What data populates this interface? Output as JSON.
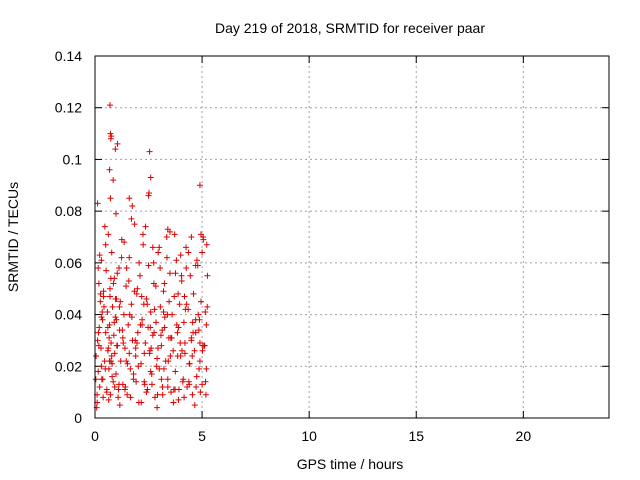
{
  "chart_data": {
    "type": "scatter",
    "title": "Day 219 of 2018, SRMTID for receiver paar",
    "xlabel": "GPS time / hours",
    "ylabel": "SRMTID / TECUs",
    "xlim": [
      0,
      24
    ],
    "ylim": [
      0,
      0.14
    ],
    "xticks": [
      0,
      5,
      10,
      15,
      20
    ],
    "xtick_labels": [
      "0",
      "5",
      "10",
      "15",
      "20"
    ],
    "yticks": [
      0,
      0.02,
      0.04,
      0.06,
      0.08,
      0.1,
      0.12,
      0.14
    ],
    "ytick_labels": [
      "0",
      "0.02",
      "0.04",
      "0.06",
      "0.08",
      "0.1",
      "0.12",
      "0.14"
    ],
    "grid": true,
    "marker": "+",
    "series": [
      {
        "name": "SRMTID",
        "color": "#e00000",
        "x": [
          0.05,
          0.1,
          0.12,
          0.15,
          0.18,
          0.2,
          0.22,
          0.25,
          0.28,
          0.3,
          0.32,
          0.35,
          0.38,
          0.4,
          0.45,
          0.5,
          0.52,
          0.55,
          0.58,
          0.6,
          0.62,
          0.65,
          0.68,
          0.7,
          0.72,
          0.75,
          0.78,
          0.8,
          0.82,
          0.85,
          0.88,
          0.9,
          0.92,
          0.95,
          0.98,
          1.0,
          1.05,
          1.1,
          1.12,
          1.15,
          1.2,
          1.25,
          1.3,
          1.35,
          1.4,
          1.45,
          1.5,
          1.55,
          1.6,
          1.65,
          1.7,
          1.75,
          1.8,
          1.85,
          1.9,
          1.95,
          2.0,
          2.05,
          2.1,
          2.15,
          2.2,
          2.25,
          2.3,
          2.35,
          2.4,
          2.45,
          2.5,
          2.55,
          2.6,
          2.65,
          2.7,
          2.75,
          2.8,
          2.85,
          2.9,
          2.95,
          3.0,
          3.05,
          3.1,
          3.15,
          3.2,
          3.25,
          3.3,
          3.35,
          3.4,
          3.45,
          3.5,
          3.55,
          3.6,
          3.65,
          3.7,
          3.75,
          3.8,
          3.85,
          3.9,
          3.95,
          4.0,
          4.05,
          4.1,
          4.15,
          4.2,
          4.25,
          4.3,
          4.35,
          4.4,
          4.45,
          4.5,
          4.55,
          4.6,
          4.65,
          4.7,
          4.75,
          4.8,
          4.85,
          4.9,
          4.95,
          5.0,
          5.05,
          5.1,
          5.15,
          5.2,
          5.25,
          0.08,
          0.15,
          0.3,
          0.42,
          0.55,
          0.66,
          0.7,
          0.75,
          0.8,
          0.9,
          1.02,
          1.08,
          1.18,
          1.28,
          1.42,
          1.6,
          1.72,
          1.88,
          2.02,
          2.18,
          2.32,
          2.48,
          2.62,
          2.78,
          2.92,
          3.08,
          3.22,
          3.38,
          3.52,
          3.68,
          3.82,
          3.98,
          4.12,
          4.28,
          4.42,
          4.58,
          4.72,
          4.88,
          5.02,
          5.18,
          0.04,
          0.18,
          0.34,
          0.48,
          0.6,
          0.78,
          0.96,
          1.12,
          1.3,
          1.46,
          1.62,
          1.8,
          1.96,
          2.12,
          2.3,
          2.44,
          2.6,
          2.76,
          2.94,
          3.1,
          3.26,
          3.42,
          3.58,
          3.74,
          3.9,
          4.06,
          4.22,
          4.38,
          4.54,
          4.7,
          4.86,
          5.04,
          5.2,
          0.12,
          0.26,
          0.5,
          0.74,
          0.98,
          1.24,
          1.48,
          1.74,
          1.98,
          2.24,
          2.5,
          2.74,
          3.0,
          3.24,
          3.5,
          3.76,
          4.0,
          4.26,
          4.5,
          4.76,
          5.0,
          5.22,
          0.1,
          0.36,
          0.64,
          0.92,
          1.16,
          1.4,
          1.66,
          1.92,
          2.16,
          2.4,
          2.66,
          2.9,
          3.16,
          3.4,
          3.66,
          3.92,
          4.16,
          4.4,
          4.66,
          4.92,
          5.16,
          0.22,
          0.46,
          0.72,
          1.04,
          1.36,
          1.7,
          2.06,
          2.36,
          2.7,
          3.04,
          3.36,
          3.72,
          4.04,
          4.36,
          4.7,
          5.06,
          0.3,
          0.62,
          0.86,
          1.14,
          1.52,
          1.84,
          2.2,
          2.56,
          2.84,
          3.14,
          3.46,
          3.86,
          4.18,
          4.5,
          4.82,
          5.12,
          0.16,
          0.4,
          0.68,
          1.0,
          1.32,
          1.58,
          1.9,
          2.28,
          2.58,
          2.88,
          3.2,
          3.54,
          3.88,
          4.2,
          4.56,
          4.9,
          5.24,
          0.7,
          0.72,
          0.74,
          0.68,
          0.76,
          1.05,
          2.55,
          2.6,
          4.9,
          2.52,
          0.95,
          1.6,
          3.4,
          4.95,
          0.85
        ],
        "y": [
          0.024,
          0.006,
          0.03,
          0.018,
          0.052,
          0.035,
          0.012,
          0.045,
          0.027,
          0.061,
          0.015,
          0.038,
          0.008,
          0.049,
          0.022,
          0.033,
          0.057,
          0.011,
          0.041,
          0.026,
          0.071,
          0.019,
          0.036,
          0.047,
          0.009,
          0.029,
          0.064,
          0.021,
          0.043,
          0.014,
          0.032,
          0.054,
          0.025,
          0.039,
          0.017,
          0.046,
          0.028,
          0.011,
          0.058,
          0.034,
          0.022,
          0.069,
          0.013,
          0.04,
          0.027,
          0.051,
          0.009,
          0.036,
          0.062,
          0.019,
          0.044,
          0.03,
          0.015,
          0.075,
          0.024,
          0.048,
          0.033,
          0.006,
          0.055,
          0.021,
          0.038,
          0.067,
          0.014,
          0.029,
          0.046,
          0.011,
          0.059,
          0.025,
          0.041,
          0.017,
          0.032,
          0.052,
          0.008,
          0.037,
          0.023,
          0.064,
          0.019,
          0.043,
          0.028,
          0.012,
          0.049,
          0.035,
          0.022,
          0.07,
          0.015,
          0.031,
          0.056,
          0.01,
          0.04,
          0.026,
          0.047,
          0.018,
          0.061,
          0.033,
          0.007,
          0.044,
          0.024,
          0.053,
          0.014,
          0.037,
          0.029,
          0.066,
          0.012,
          0.042,
          0.021,
          0.055,
          0.031,
          0.009,
          0.048,
          0.026,
          0.038,
          0.016,
          0.059,
          0.034,
          0.022,
          0.045,
          0.013,
          0.07,
          0.028,
          0.041,
          0.019,
          0.055,
          0.004,
          0.058,
          0.02,
          0.043,
          0.01,
          0.031,
          0.05,
          0.022,
          0.016,
          0.037,
          0.028,
          0.008,
          0.045,
          0.034,
          0.012,
          0.025,
          0.039,
          0.03,
          0.02,
          0.047,
          0.013,
          0.035,
          0.027,
          0.042,
          0.009,
          0.032,
          0.019,
          0.04,
          0.024,
          0.011,
          0.036,
          0.029,
          0.015,
          0.044,
          0.021,
          0.033,
          0.012,
          0.038,
          0.026,
          0.009,
          0.015,
          0.028,
          0.041,
          0.019,
          0.035,
          0.024,
          0.046,
          0.013,
          0.031,
          0.022,
          0.04,
          0.017,
          0.029,
          0.036,
          0.025,
          0.044,
          0.018,
          0.033,
          0.027,
          0.015,
          0.039,
          0.022,
          0.031,
          0.011,
          0.035,
          0.026,
          0.042,
          0.014,
          0.024,
          0.033,
          0.019,
          0.028,
          0.036,
          0.083,
          0.048,
          0.067,
          0.054,
          0.079,
          0.062,
          0.058,
          0.082,
          0.05,
          0.071,
          0.086,
          0.06,
          0.066,
          0.052,
          0.072,
          0.056,
          0.063,
          0.058,
          0.07,
          0.061,
          0.064,
          0.067,
          0.009,
          0.015,
          0.007,
          0.012,
          0.005,
          0.011,
          0.008,
          0.014,
          0.006,
          0.01,
          0.013,
          0.004,
          0.009,
          0.012,
          0.006,
          0.011,
          0.008,
          0.013,
          0.005,
          0.01,
          0.014,
          0.063,
          0.074,
          0.085,
          0.056,
          0.068,
          0.077,
          0.06,
          0.074,
          0.066,
          0.058,
          0.062,
          0.071,
          0.055,
          0.064,
          0.059,
          0.069,
          0.039,
          0.027,
          0.052,
          0.043,
          0.021,
          0.049,
          0.036,
          0.026,
          0.051,
          0.034,
          0.045,
          0.024,
          0.047,
          0.03,
          0.04,
          0.028,
          0.033,
          0.047,
          0.022,
          0.038,
          0.029,
          0.053,
          0.027,
          0.044,
          0.035,
          0.02,
          0.041,
          0.031,
          0.048,
          0.025,
          0.037,
          0.029,
          0.043,
          0.121,
          0.11,
          0.108,
          0.096,
          0.109,
          0.106,
          0.103,
          0.093,
          0.09,
          0.087,
          0.104,
          0.085,
          0.073,
          0.071,
          0.092
        ]
      }
    ]
  }
}
